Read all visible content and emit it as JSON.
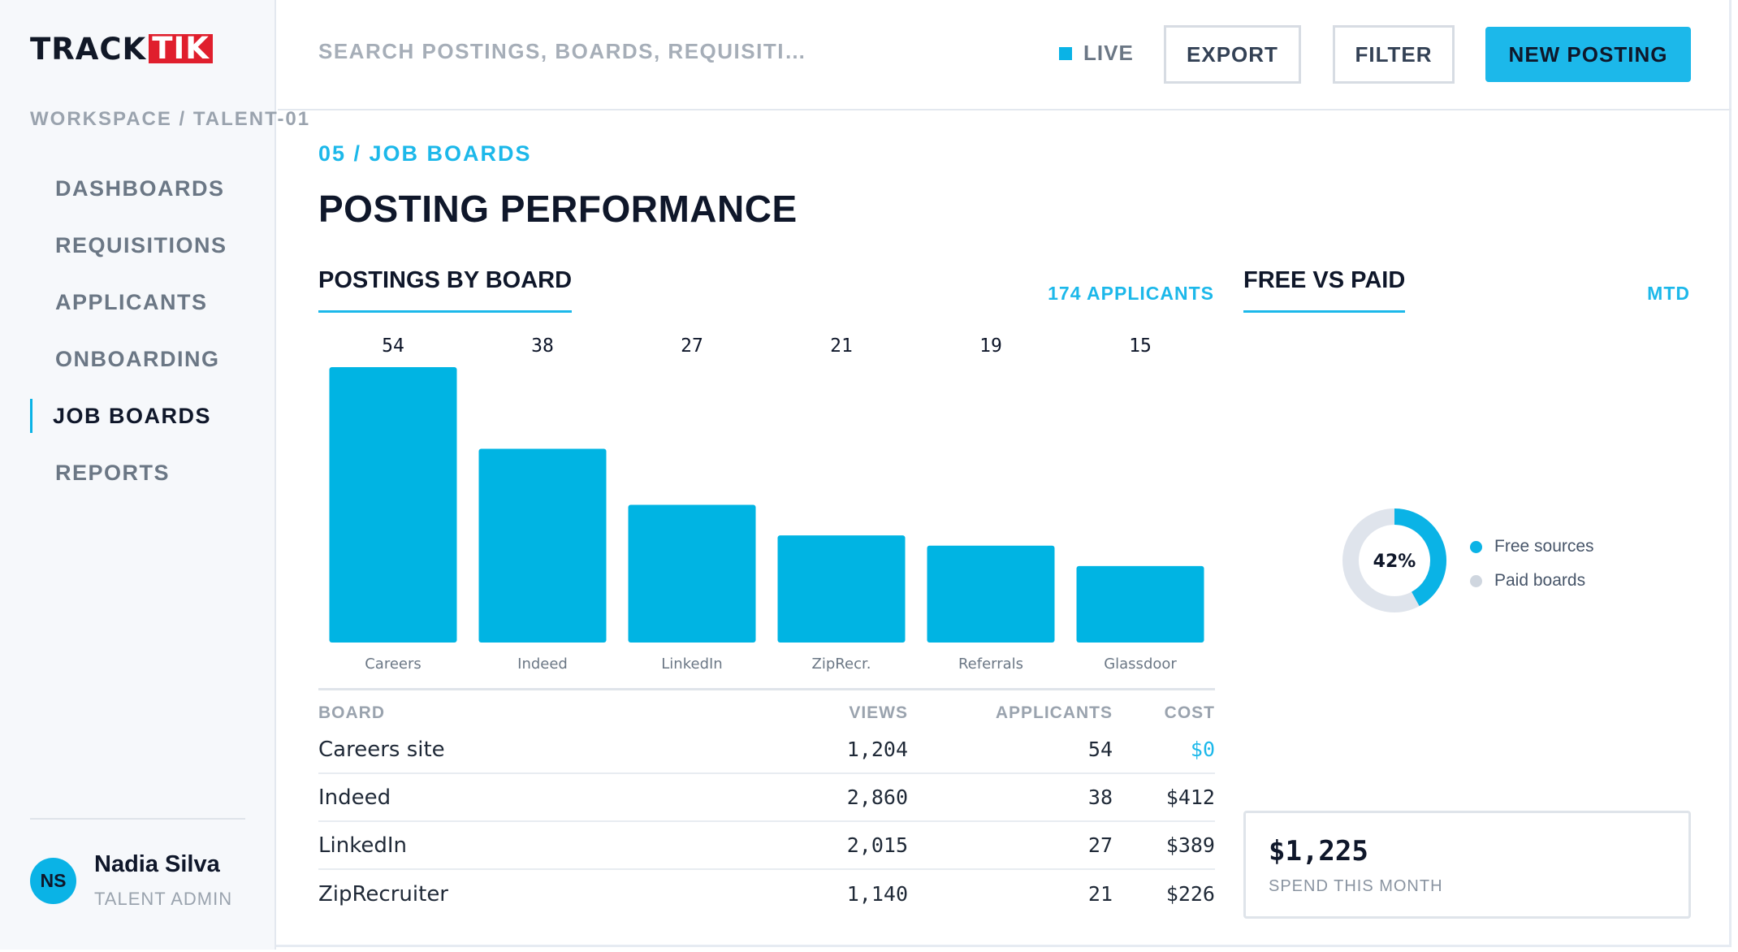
{
  "app": {
    "logo_part1": "TRACK",
    "logo_part2": "TIK",
    "workspace": "WORKSPACE / TALENT-01"
  },
  "sidebar": {
    "items": [
      {
        "label": "DASHBOARDS",
        "active": false
      },
      {
        "label": "REQUISITIONS",
        "active": false
      },
      {
        "label": "APPLICANTS",
        "active": false
      },
      {
        "label": "ONBOARDING",
        "active": false
      },
      {
        "label": "JOB BOARDS",
        "active": true
      },
      {
        "label": "REPORTS",
        "active": false
      }
    ],
    "user": {
      "initials": "NS",
      "name": "Nadia Silva",
      "role": "TALENT ADMIN"
    }
  },
  "header": {
    "search_placeholder": "SEARCH POSTINGS, BOARDS, REQUISITIONS",
    "live_label": "LIVE",
    "export_label": "EXPORT",
    "filter_label": "FILTER",
    "new_posting_label": "NEW POSTING"
  },
  "main": {
    "breadcrumb": "05 / JOB BOARDS",
    "title": "POSTING PERFORMANCE",
    "postings_section": {
      "title": "POSTINGS BY BOARD",
      "meta": "174 APPLICANTS"
    },
    "free_section": {
      "title": "FREE VS PAID",
      "meta": "MTD"
    },
    "table": {
      "headers": [
        "BOARD",
        "VIEWS",
        "APPLICANTS",
        "COST"
      ],
      "rows": [
        [
          "Careers site",
          "1,204",
          "54",
          "$0"
        ],
        [
          "Indeed",
          "2,860",
          "38",
          "$412"
        ],
        [
          "LinkedIn",
          "2,015",
          "27",
          "$389"
        ],
        [
          "ZipRecruiter",
          "1,140",
          "21",
          "$226"
        ]
      ]
    },
    "donut": {
      "label": "42%",
      "legend": [
        {
          "label": "Free sources",
          "color": "#0ab3e6"
        },
        {
          "label": "Paid boards",
          "color": "#cfd6df"
        }
      ]
    },
    "spend": {
      "value": "$1,225",
      "label": "SPEND THIS MONTH"
    }
  },
  "chart_data": {
    "type": "bar",
    "categories": [
      "Careers",
      "Indeed",
      "LinkedIn",
      "ZipRecr.",
      "Referrals",
      "Glassdoor"
    ],
    "values": [
      54,
      38,
      27,
      21,
      19,
      15
    ],
    "title": "POSTINGS BY BOARD",
    "bar_color": "#00b4e3",
    "ylim": [
      0,
      54
    ]
  },
  "donut_data": {
    "type": "pie",
    "values": [
      42,
      58
    ],
    "labels": [
      "Free sources",
      "Paid boards"
    ],
    "colors": [
      "#0ab3e6",
      "#dfe4ec"
    ]
  }
}
